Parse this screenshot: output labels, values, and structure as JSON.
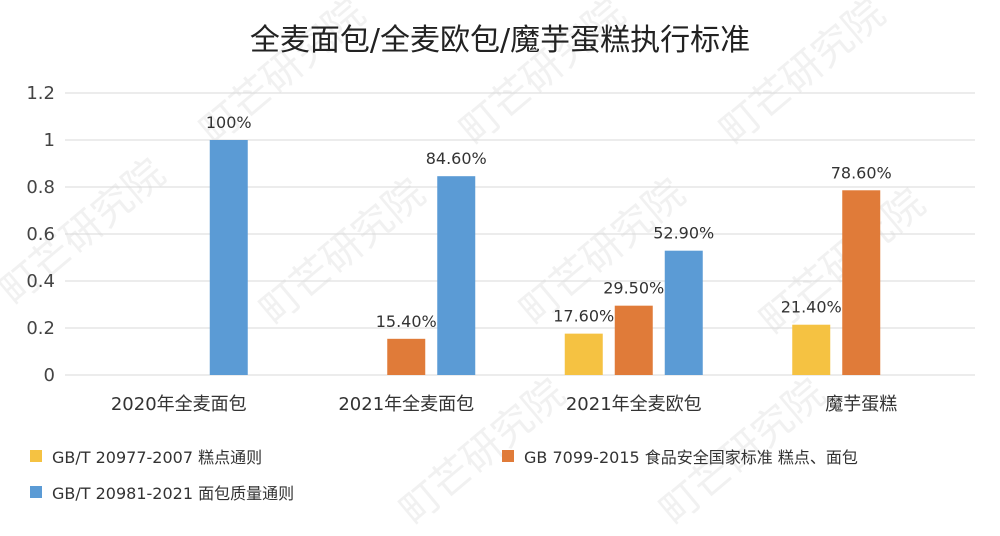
{
  "watermark": "町芒研究院",
  "chart_data": {
    "type": "bar",
    "title": "全麦面包/全麦欧包/魔芋蛋糕执行标准",
    "categories": [
      "2020年全麦面包",
      "2021年全麦面包",
      "2021年全麦欧包",
      "魔芋蛋糕"
    ],
    "ylim": [
      0,
      1.2
    ],
    "yticks": [
      "0",
      "0.2",
      "0.4",
      "0.6",
      "0.8",
      "1",
      "1.2"
    ],
    "grid": true,
    "legend_position": "bottom",
    "series": [
      {
        "name": "GB/T 20977-2007 糕点通则",
        "color": "#F5C242",
        "values": [
          null,
          null,
          0.176,
          0.214
        ],
        "labels": [
          null,
          null,
          "17.60%",
          "21.40%"
        ]
      },
      {
        "name": "GB 7099-2015 食品安全国家标准 糕点、面包",
        "color": "#E07B39",
        "values": [
          null,
          0.154,
          0.295,
          0.786
        ],
        "labels": [
          null,
          "15.40%",
          "29.50%",
          "78.60%"
        ]
      },
      {
        "name": "GB/T 20981-2021 面包质量通则",
        "color": "#5B9BD5",
        "values": [
          1.0,
          0.846,
          0.529,
          null
        ],
        "labels": [
          "100%",
          "84.60%",
          "52.90%",
          null
        ]
      }
    ]
  }
}
